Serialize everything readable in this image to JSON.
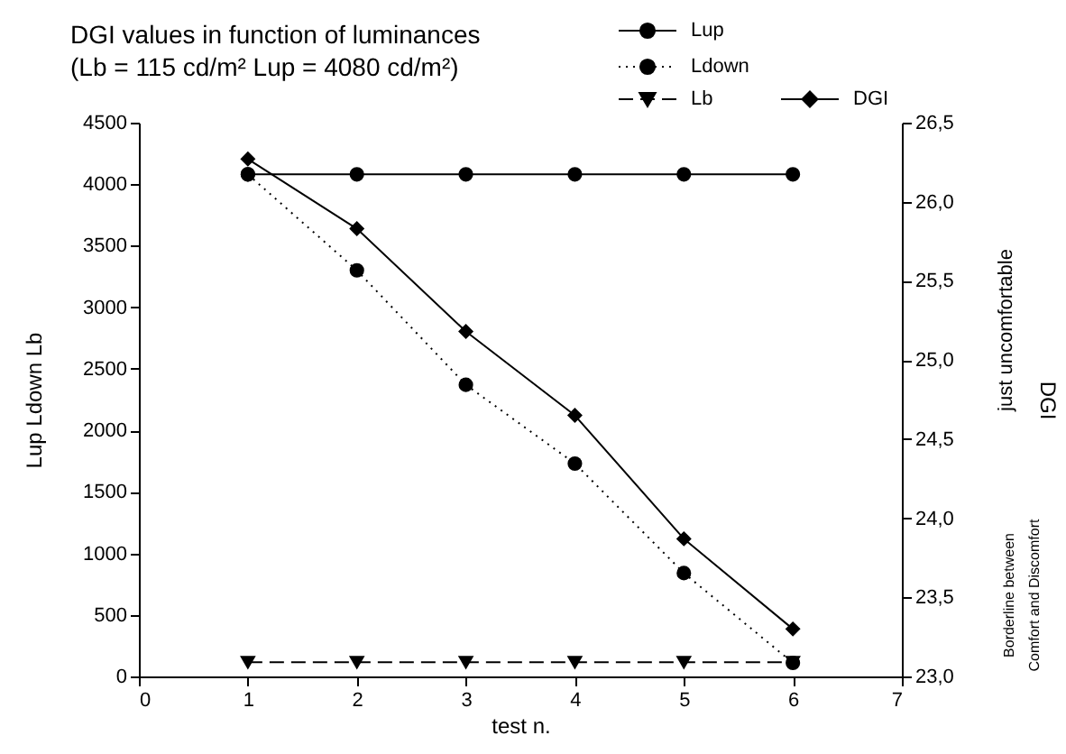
{
  "chart_data": {
    "type": "line",
    "title": "DGI values in function of luminances",
    "subtitle": "(Lb = 115 cd/m²  Lup = 4080 cd/m²)",
    "xlabel": "test n.",
    "ylabel": "Lup        Ldown        Lb",
    "y2label": "DGI",
    "x": [
      1,
      2,
      3,
      4,
      5,
      6
    ],
    "series": [
      {
        "name": "Lup",
        "color": "#000000",
        "marker": "circle",
        "line_style": "solid",
        "values": [
          4080,
          4080,
          4080,
          4080,
          4080,
          4080
        ]
      },
      {
        "name": "Ldown",
        "color": "#000000",
        "marker": "circle",
        "line_style": "dotted",
        "values": [
          4080,
          3300,
          2370,
          1730,
          840,
          110
        ]
      },
      {
        "name": "Lb",
        "color": "#000000",
        "marker": "triangle",
        "line_style": "dashed",
        "values": [
          115,
          115,
          115,
          115,
          115,
          115
        ]
      },
      {
        "name": "DGI",
        "color": "#000000",
        "marker": "diamond",
        "line_style": "solid",
        "axis": "y2",
        "values": [
          26.27,
          25.83,
          25.18,
          24.65,
          23.87,
          23.3
        ]
      }
    ],
    "xlim": [
      0,
      7
    ],
    "xticks": [
      0,
      1,
      2,
      3,
      4,
      5,
      6,
      7
    ],
    "ylim": [
      0,
      4500
    ],
    "yticks": [
      0,
      500,
      1000,
      1500,
      2000,
      2500,
      3000,
      3500,
      4000,
      4500
    ],
    "y2lim": [
      23,
      26.5
    ],
    "y2ticks": [
      {
        "value": 23,
        "label": "23,0"
      },
      {
        "value": 23.5,
        "label": "23,5"
      },
      {
        "value": 24,
        "label": "24,0"
      },
      {
        "value": 24.5,
        "label": "24,5"
      },
      {
        "value": 25,
        "label": "25,0"
      },
      {
        "value": 25.5,
        "label": "25,5"
      },
      {
        "value": 26,
        "label": "26,0"
      },
      {
        "value": 26.5,
        "label": "26,5"
      }
    ],
    "annotations": [
      "just uncomfortable",
      "Borderline between\nComfort and Discomfort"
    ],
    "legend": "top right",
    "grid": false
  }
}
